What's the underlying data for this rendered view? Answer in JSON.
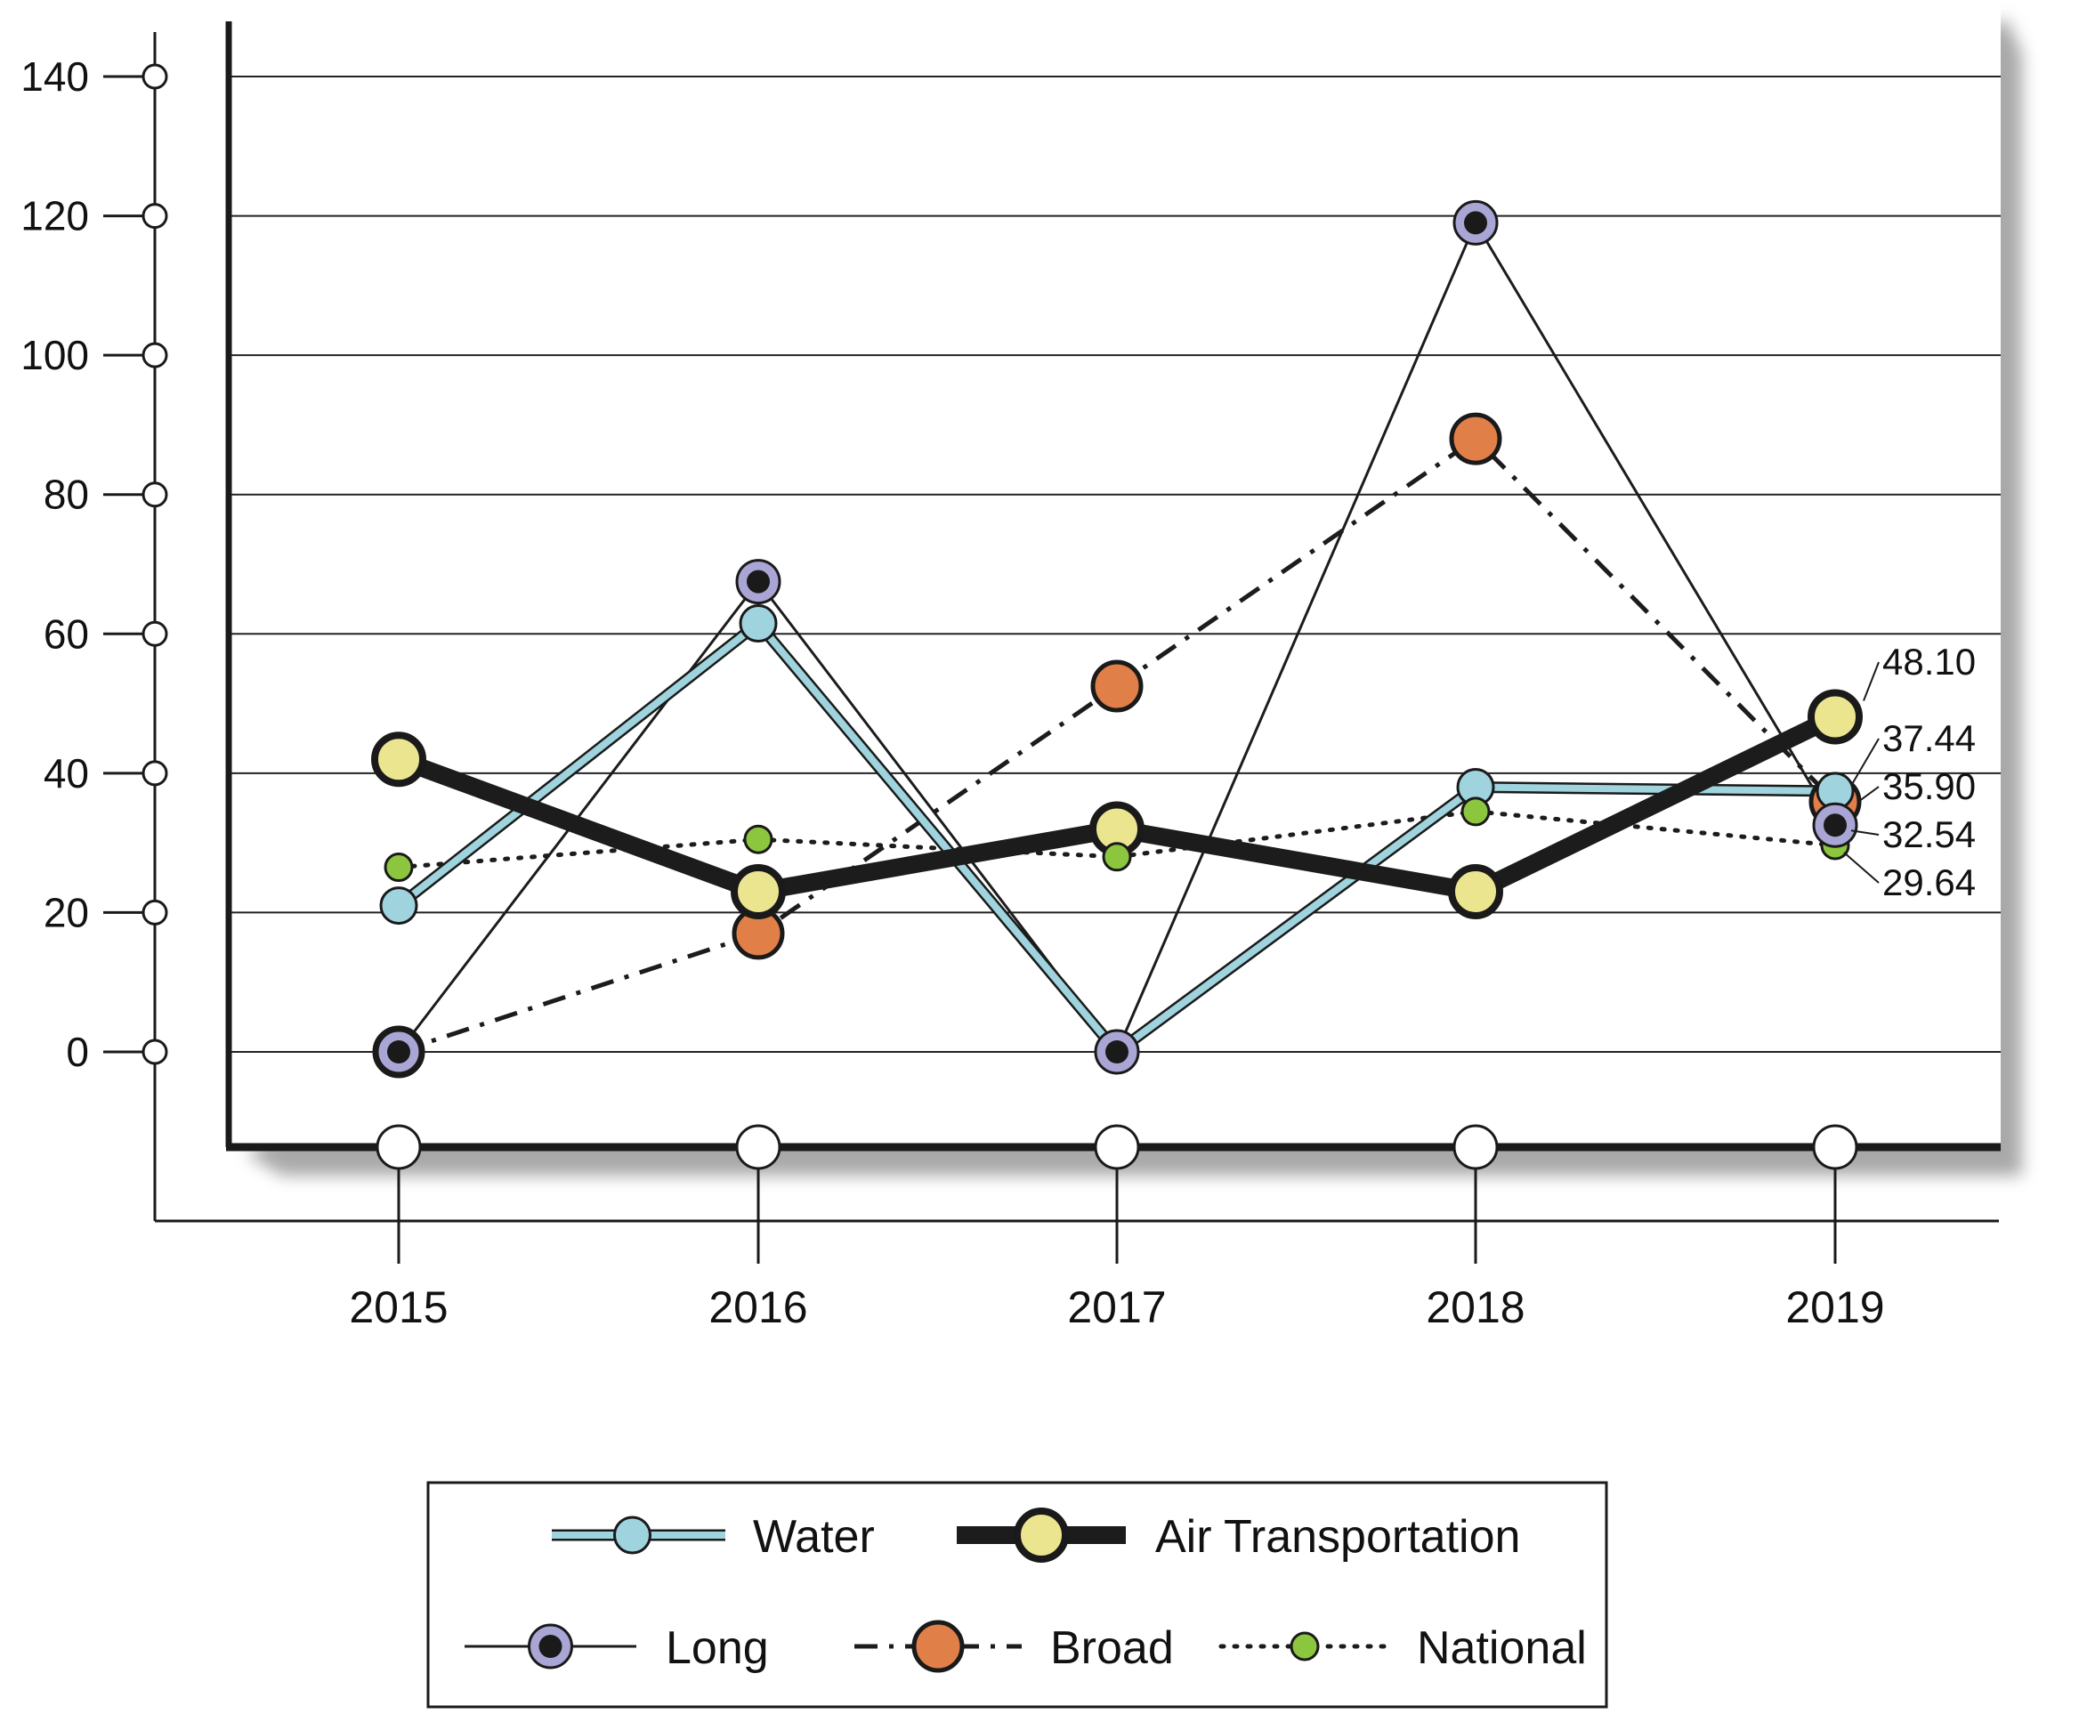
{
  "chart_data": {
    "type": "line",
    "categories": [
      "2015",
      "2016",
      "2017",
      "2018",
      "2019"
    ],
    "ylim": [
      0,
      140
    ],
    "yticks": [
      0,
      20,
      40,
      60,
      80,
      100,
      120,
      140
    ],
    "grid": true,
    "legend_position": "bottom",
    "series": [
      {
        "name": "Water",
        "values": [
          21,
          61.5,
          0,
          38,
          37.44
        ],
        "color": "#9fd4df",
        "style": "solid-thick-outlined"
      },
      {
        "name": "Air Transportation",
        "values": [
          42,
          23,
          32,
          23,
          48.1
        ],
        "color": "#1c1c1c",
        "marker_color": "#ece590",
        "style": "solid-heavy"
      },
      {
        "name": "Long",
        "values": [
          0,
          67.5,
          0,
          119,
          32.54
        ],
        "color": "#1c1c1c",
        "marker_color": "#a9a5d4",
        "style": "solid-thin"
      },
      {
        "name": "Broad",
        "values": [
          0,
          17,
          52.5,
          88,
          35.9
        ],
        "color": "#1c1c1c",
        "marker_color": "#e07f48",
        "style": "dash-dot"
      },
      {
        "name": "National",
        "values": [
          26.5,
          30.5,
          28,
          34.5,
          29.64
        ],
        "color": "#1c1c1c",
        "marker_color": "#8cc63e",
        "style": "dotted"
      }
    ],
    "end_labels": [
      "48.10",
      "37.44",
      "35.90",
      "32.54",
      "29.64"
    ]
  }
}
